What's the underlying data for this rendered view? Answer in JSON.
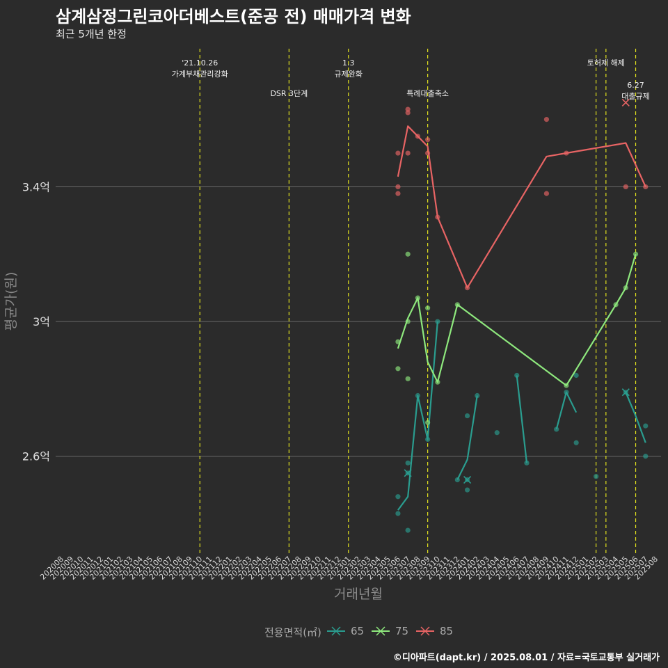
{
  "title": "삼계삼정그린코아더베스트(준공 전) 매매가격 변화",
  "subtitle": "최근 5개년 한정",
  "caption": "©디아파트(dapt.kr) / 2025.08.01 / 자료=국토교통부 실거래가",
  "legend": {
    "title": "전용면적(㎡)",
    "items": [
      {
        "label": "65",
        "color": "#2a9d8f"
      },
      {
        "label": "75",
        "color": "#8ee87d"
      },
      {
        "label": "85",
        "color": "#e86464"
      }
    ]
  },
  "chart_data": {
    "type": "line",
    "xlabel": "거래년월",
    "ylabel": "평균가(원)",
    "grid": true,
    "legend_position": "bottom",
    "ylim": [
      2.31,
      3.81
    ],
    "y_ticks": [
      {
        "value": 2.6,
        "label": "2.6억"
      },
      {
        "value": 3.0,
        "label": "3억"
      },
      {
        "value": 3.4,
        "label": "3.4억"
      }
    ],
    "x_categories": [
      "202008",
      "202009",
      "202010",
      "202011",
      "202012",
      "202101",
      "202102",
      "202103",
      "202104",
      "202105",
      "202106",
      "202107",
      "202108",
      "202109",
      "202110",
      "202111",
      "202112",
      "202201",
      "202202",
      "202203",
      "202204",
      "202205",
      "202206",
      "202207",
      "202208",
      "202209",
      "202210",
      "202211",
      "202212",
      "202301",
      "202302",
      "202303",
      "202304",
      "202305",
      "202306",
      "202307",
      "202308",
      "202309",
      "202310",
      "202311",
      "202312",
      "202401",
      "202402",
      "202403",
      "202404",
      "202405",
      "202406",
      "202407",
      "202408",
      "202409",
      "202410",
      "202411",
      "202412",
      "202501",
      "202502",
      "202503",
      "202504",
      "202505",
      "202506",
      "202507",
      "202508"
    ],
    "annotations": [
      {
        "x": "202110",
        "lines": [
          "'21.10.26",
          "가계부채관리강화"
        ],
        "level": 0
      },
      {
        "x": "202207",
        "lines": [
          "DSR 3단계"
        ],
        "level": 1
      },
      {
        "x": "202301",
        "lines": [
          "1.3",
          "규제완화"
        ],
        "level": 0
      },
      {
        "x": "202309",
        "lines": [
          "특례대출축소"
        ],
        "level": 1
      },
      {
        "x": "202502",
        "lines": [],
        "level": 0
      },
      {
        "x": "202503",
        "lines": [
          "토허제 해제"
        ],
        "level": 0
      },
      {
        "x": "202506",
        "lines": [
          "6.27",
          "대출규제"
        ],
        "level": 1
      }
    ],
    "series": [
      {
        "name": "65",
        "color": "#2a9d8f",
        "segments": [
          [
            [
              "202306",
              2.44
            ],
            [
              "202307",
              2.48
            ],
            [
              "202308",
              2.78
            ],
            [
              "202309",
              2.65
            ],
            [
              "202310",
              3.0
            ]
          ],
          [
            [
              "202312",
              2.53
            ],
            [
              "202401",
              2.59
            ],
            [
              "202402",
              2.78
            ]
          ],
          [
            [
              "202406",
              2.84
            ],
            [
              "202407",
              2.58
            ]
          ],
          [
            [
              "202410",
              2.68
            ],
            [
              "202411",
              2.79
            ],
            [
              "202412",
              2.73
            ]
          ],
          [
            [
              "202505",
              2.79
            ],
            [
              "202506",
              2.72
            ],
            [
              "202507",
              2.64
            ]
          ]
        ],
        "points": [
          [
            "202306",
            2.48
          ],
          [
            "202306",
            2.43
          ],
          [
            "202307",
            2.58
          ],
          [
            "202307",
            2.38
          ],
          [
            "202307",
            2.55
          ],
          [
            "202308",
            2.78
          ],
          [
            "202309",
            2.65
          ],
          [
            "202310",
            3.0
          ],
          [
            "202312",
            2.53
          ],
          [
            "202401",
            2.72
          ],
          [
            "202401",
            2.5
          ],
          [
            "202401",
            2.53
          ],
          [
            "202402",
            2.78
          ],
          [
            "202404",
            2.67
          ],
          [
            "202406",
            2.84
          ],
          [
            "202407",
            2.58
          ],
          [
            "202410",
            2.68
          ],
          [
            "202411",
            2.79
          ],
          [
            "202412",
            2.84
          ],
          [
            "202412",
            2.64
          ],
          [
            "202502",
            2.54
          ],
          [
            "202505",
            2.79
          ],
          [
            "202507",
            2.69
          ],
          [
            "202507",
            2.6
          ]
        ],
        "crosses": [
          [
            "202307",
            2.55
          ],
          [
            "202401",
            2.53
          ],
          [
            "202505",
            2.79
          ]
        ]
      },
      {
        "name": "75",
        "color": "#8ee87d",
        "segments": [
          [
            [
              "202306",
              2.92
            ],
            [
              "202307",
              3.01
            ],
            [
              "202308",
              3.07
            ],
            [
              "202309",
              2.88
            ],
            [
              "202310",
              2.82
            ],
            [
              "202312",
              3.05
            ],
            [
              "202411",
              2.81
            ],
            [
              "202504",
              3.05
            ],
            [
              "202505",
              3.1
            ],
            [
              "202506",
              3.2
            ]
          ]
        ],
        "points": [
          [
            "202306",
            2.94
          ],
          [
            "202306",
            2.86
          ],
          [
            "202307",
            3.2
          ],
          [
            "202307",
            3.0
          ],
          [
            "202307",
            2.83
          ],
          [
            "202308",
            3.07
          ],
          [
            "202309",
            3.04
          ],
          [
            "202309",
            2.7
          ],
          [
            "202310",
            2.82
          ],
          [
            "202312",
            3.05
          ],
          [
            "202411",
            2.81
          ],
          [
            "202504",
            3.05
          ],
          [
            "202505",
            3.1
          ],
          [
            "202506",
            3.2
          ]
        ],
        "crosses": []
      },
      {
        "name": "85",
        "color": "#e86464",
        "segments": [
          [
            [
              "202306",
              3.43
            ],
            [
              "202307",
              3.58
            ],
            [
              "202308",
              3.55
            ],
            [
              "202309",
              3.52
            ],
            [
              "202310",
              3.31
            ],
            [
              "202401",
              3.1
            ],
            [
              "202409",
              3.49
            ],
            [
              "202411",
              3.5
            ],
            [
              "202505",
              3.53
            ],
            [
              "202507",
              3.4
            ]
          ]
        ],
        "points": [
          [
            "202306",
            3.5
          ],
          [
            "202306",
            3.4
          ],
          [
            "202306",
            3.38
          ],
          [
            "202307",
            3.63
          ],
          [
            "202307",
            3.62
          ],
          [
            "202307",
            3.5
          ],
          [
            "202308",
            3.55
          ],
          [
            "202309",
            3.54
          ],
          [
            "202309",
            3.5
          ],
          [
            "202310",
            3.31
          ],
          [
            "202401",
            3.1
          ],
          [
            "202409",
            3.6
          ],
          [
            "202409",
            3.38
          ],
          [
            "202411",
            3.5
          ],
          [
            "202505",
            3.4
          ],
          [
            "202507",
            3.4
          ]
        ],
        "crosses": [
          [
            "202505",
            3.65
          ]
        ]
      }
    ]
  }
}
